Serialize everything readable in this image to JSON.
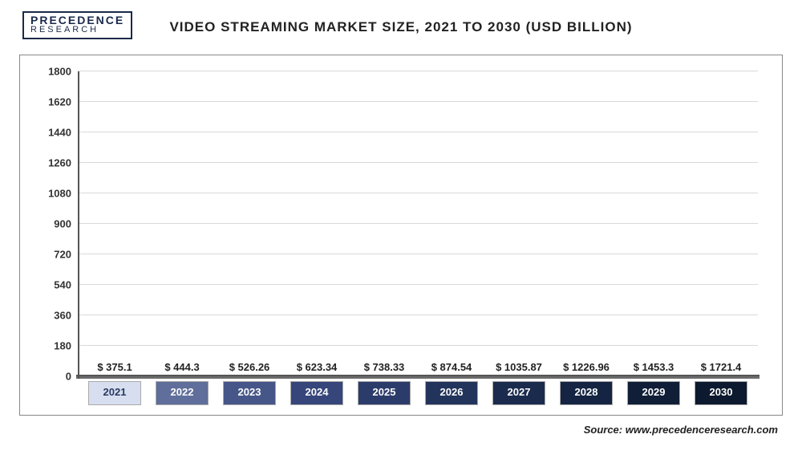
{
  "logo": {
    "top": "PRECEDENCE",
    "bottom": "RESEARCH"
  },
  "chart": {
    "type": "bar",
    "title": "VIDEO STREAMING MARKET SIZE, 2021 TO 2030 (USD BILLION)",
    "ylim": [
      0,
      1800
    ],
    "ytick_step": 180,
    "yticks": [
      0,
      180,
      360,
      540,
      720,
      900,
      1080,
      1260,
      1440,
      1620,
      1800
    ],
    "grid_color": "#d9d9d9",
    "axis_color": "#555555",
    "background_color": "#ffffff",
    "value_fontsize": 13,
    "axis_fontsize": 13,
    "title_fontsize": 17,
    "bar_width": 0.66,
    "series": [
      {
        "year": "2021",
        "value": 375.1,
        "label": "$ 375.1",
        "color": "#b9c5e0",
        "xlabel_bg": "#d6def0",
        "xlabel_color": "#2a3a60"
      },
      {
        "year": "2022",
        "value": 444.3,
        "label": "$ 444.3",
        "color": "#65739f",
        "xlabel_bg": "#5f6e9a",
        "xlabel_color": "#ffffff"
      },
      {
        "year": "2023",
        "value": 526.26,
        "label": "$ 526.26",
        "color": "#4a5a8e",
        "xlabel_bg": "#475688",
        "xlabel_color": "#ffffff"
      },
      {
        "year": "2024",
        "value": 623.34,
        "label": "$ 623.34",
        "color": "#3a4a80",
        "xlabel_bg": "#36467a",
        "xlabel_color": "#ffffff"
      },
      {
        "year": "2025",
        "value": 738.33,
        "label": "$ 738.33",
        "color": "#2f4070",
        "xlabel_bg": "#2c3c6a",
        "xlabel_color": "#ffffff"
      },
      {
        "year": "2026",
        "value": 874.54,
        "label": "$ 874.54",
        "color": "#263862",
        "xlabel_bg": "#23345c",
        "xlabel_color": "#ffffff"
      },
      {
        "year": "2027",
        "value": 1035.87,
        "label": "$ 1035.87",
        "color": "#1d2e52",
        "xlabel_bg": "#1b2b4d",
        "xlabel_color": "#ffffff"
      },
      {
        "year": "2028",
        "value": 1226.96,
        "label": "$ 1226.96",
        "color": "#172747",
        "xlabel_bg": "#152442",
        "xlabel_color": "#ffffff"
      },
      {
        "year": "2029",
        "value": 1453.3,
        "label": "$ 1453.3",
        "color": "#12213c",
        "xlabel_bg": "#101e37",
        "xlabel_color": "#ffffff"
      },
      {
        "year": "2030",
        "value": 1721.4,
        "label": "$ 1721.4",
        "color": "#0d1b32",
        "xlabel_bg": "#0c192e",
        "xlabel_color": "#ffffff"
      }
    ]
  },
  "source": "Source: www.precedenceresearch.com"
}
